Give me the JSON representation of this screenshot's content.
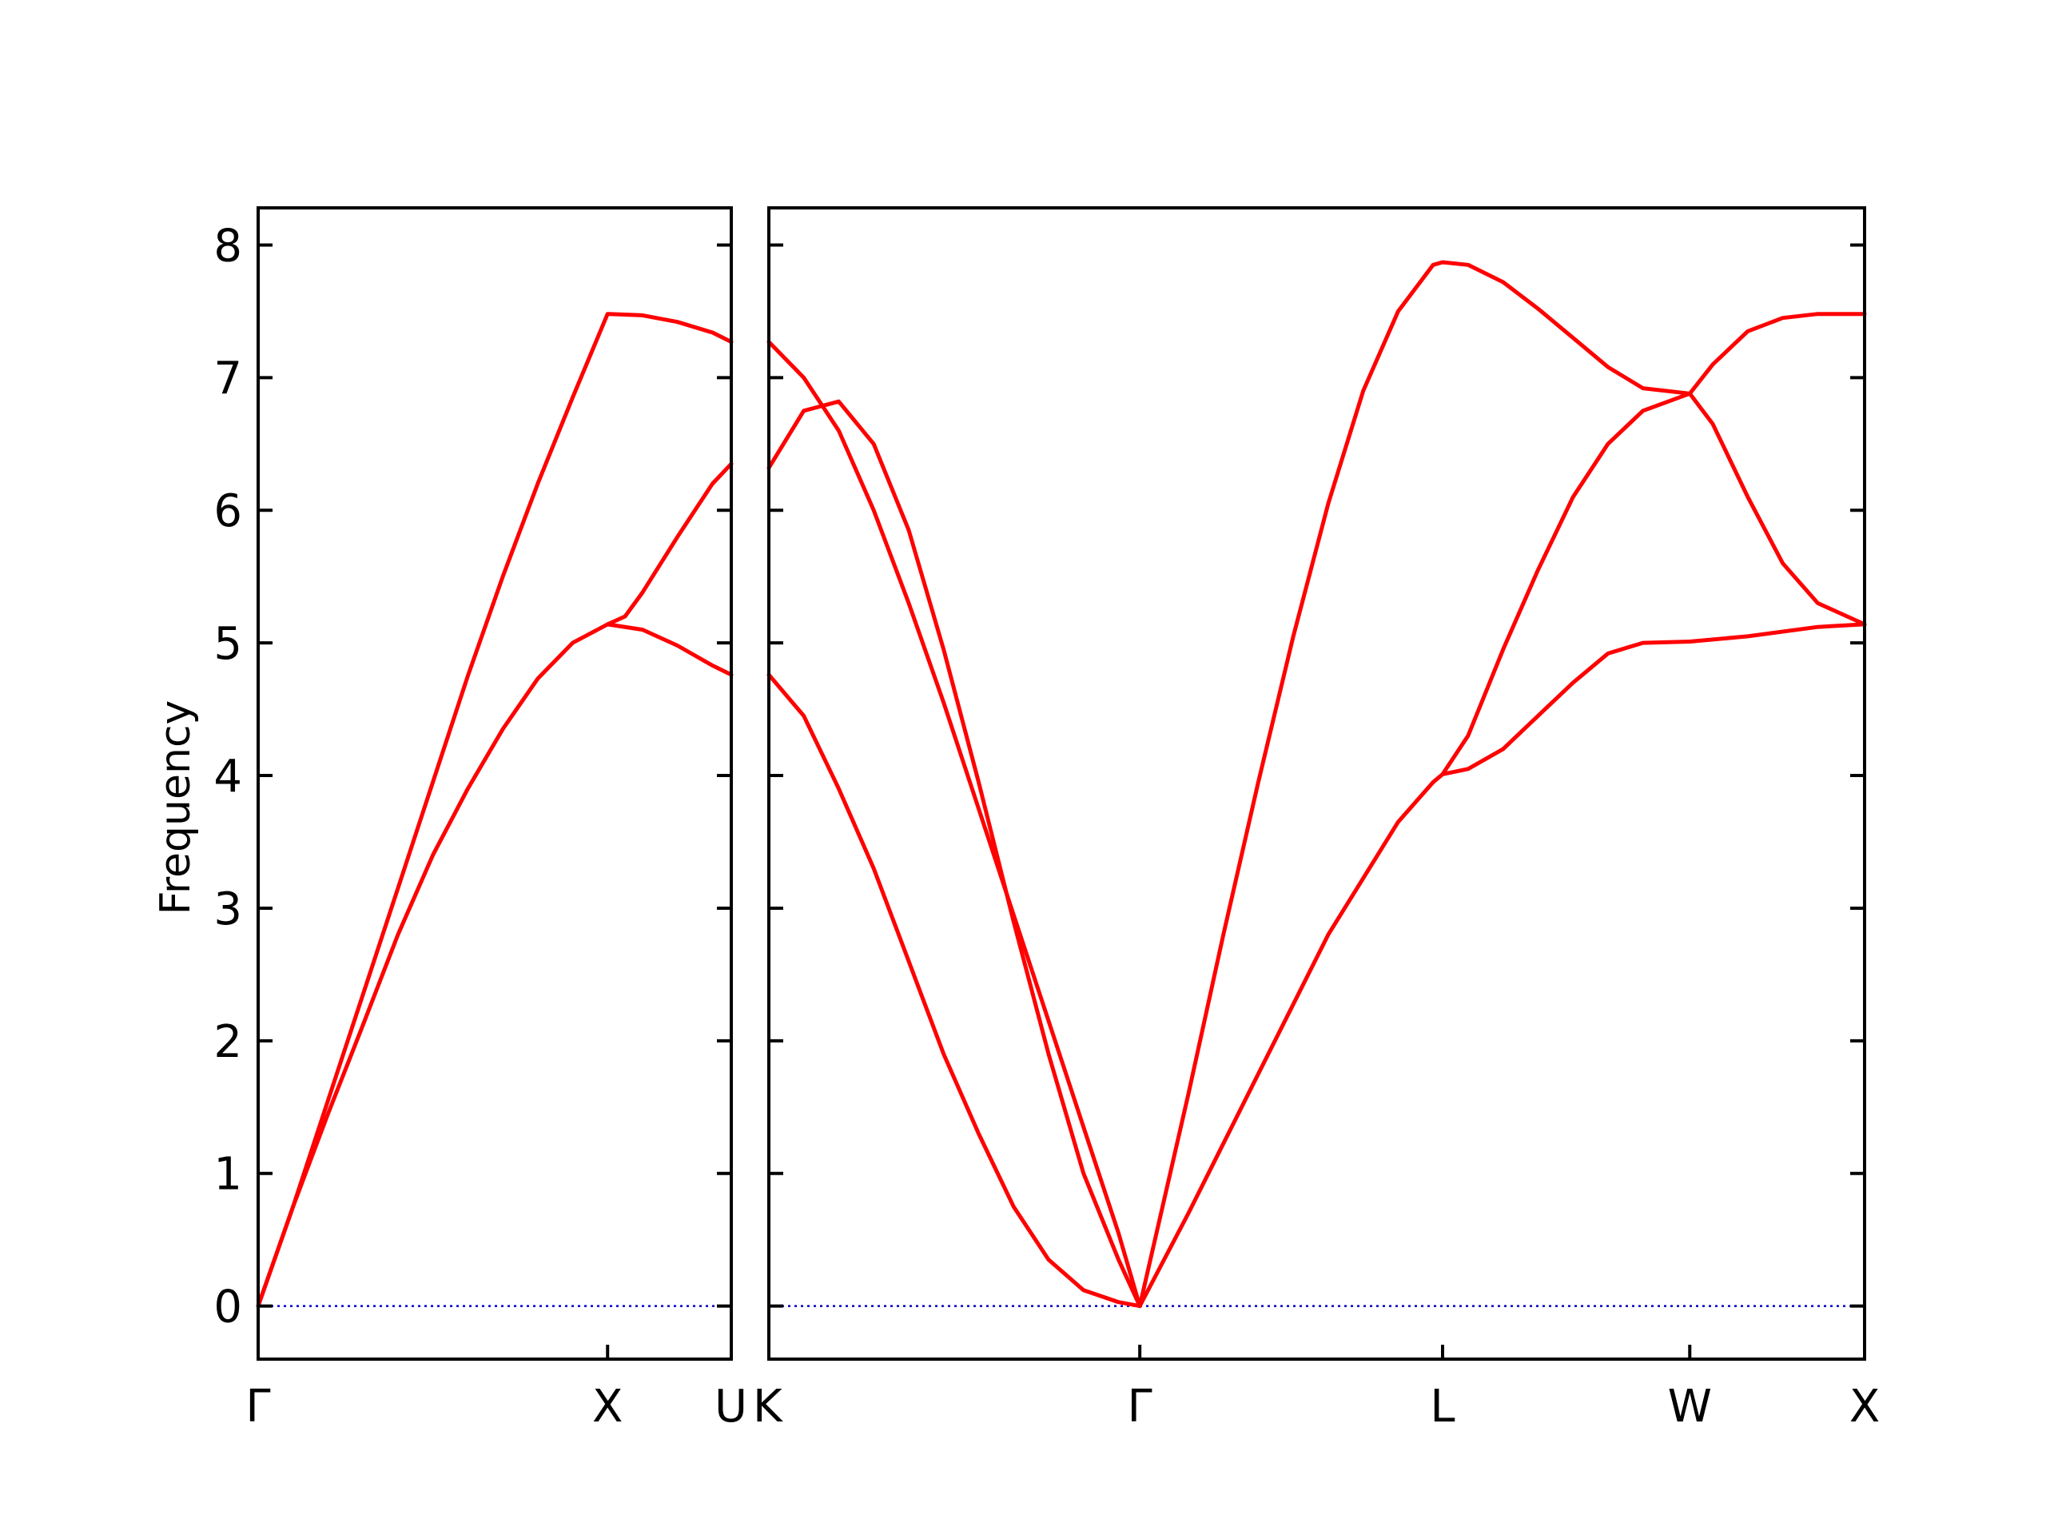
{
  "chart_data": {
    "type": "line",
    "ylabel": "Frequency",
    "ylim": [
      -0.4,
      8.28
    ],
    "yticks": [
      0,
      1,
      2,
      3,
      4,
      5,
      6,
      7,
      8
    ],
    "ytick_labels": [
      "0",
      "1",
      "2",
      "3",
      "4",
      "5",
      "6",
      "7",
      "8"
    ],
    "grid": false,
    "band_color": "#ff0000",
    "zero_line_color": "#0000cc",
    "panels": [
      {
        "xlim": [
          0,
          1.354
        ],
        "ticks": [
          {
            "x": 0,
            "label": "Γ"
          },
          {
            "x": 1.0,
            "label": "X"
          },
          {
            "x": 1.354,
            "label": "U"
          }
        ],
        "series": [
          {
            "values": [
              [
                0,
                0
              ],
              [
                0.1,
                0.75
              ],
              [
                0.2,
                1.55
              ],
              [
                0.3,
                2.35
              ],
              [
                0.4,
                3.15
              ],
              [
                0.5,
                3.95
              ],
              [
                0.6,
                4.75
              ],
              [
                0.7,
                5.5
              ],
              [
                0.8,
                6.2
              ],
              [
                0.9,
                6.85
              ],
              [
                1.0,
                7.48
              ],
              [
                1.1,
                7.47
              ],
              [
                1.2,
                7.42
              ],
              [
                1.3,
                7.34
              ],
              [
                1.354,
                7.27
              ]
            ]
          },
          {
            "values": [
              [
                0,
                0
              ],
              [
                0.1,
                0.75
              ],
              [
                0.2,
                1.45
              ],
              [
                0.3,
                2.12
              ],
              [
                0.4,
                2.8
              ],
              [
                0.5,
                3.4
              ],
              [
                0.6,
                3.9
              ],
              [
                0.7,
                4.35
              ],
              [
                0.8,
                4.73
              ],
              [
                0.9,
                5.0
              ],
              [
                1.0,
                5.14
              ],
              [
                1.05,
                5.2
              ],
              [
                1.1,
                5.38
              ],
              [
                1.2,
                5.8
              ],
              [
                1.3,
                6.2
              ],
              [
                1.354,
                6.35
              ]
            ]
          },
          {
            "values": [
              [
                1.0,
                5.14
              ],
              [
                1.1,
                5.1
              ],
              [
                1.2,
                4.98
              ],
              [
                1.3,
                4.83
              ],
              [
                1.354,
                4.76
              ]
            ]
          }
        ]
      },
      {
        "xlim": [
          0,
          3.134
        ],
        "ticks": [
          {
            "x": 0,
            "label": "K"
          },
          {
            "x": 1.061,
            "label": "Γ"
          },
          {
            "x": 1.927,
            "label": "L"
          },
          {
            "x": 2.634,
            "label": "W"
          },
          {
            "x": 3.134,
            "label": "X"
          }
        ],
        "series": [
          {
            "values": [
              [
                0,
                7.27
              ],
              [
                0.1,
                7.0
              ],
              [
                0.2,
                6.6
              ],
              [
                0.3,
                6.0
              ],
              [
                0.4,
                5.3
              ],
              [
                0.5,
                4.55
              ],
              [
                0.6,
                3.75
              ],
              [
                0.7,
                2.95
              ],
              [
                0.8,
                2.15
              ],
              [
                0.9,
                1.35
              ],
              [
                1.0,
                0.55
              ],
              [
                1.061,
                0
              ]
            ]
          },
          {
            "values": [
              [
                0,
                6.32
              ],
              [
                0.1,
                6.75
              ],
              [
                0.2,
                6.82
              ],
              [
                0.3,
                6.5
              ],
              [
                0.4,
                5.85
              ],
              [
                0.5,
                4.95
              ],
              [
                0.6,
                3.95
              ],
              [
                0.7,
                2.9
              ],
              [
                0.8,
                1.9
              ],
              [
                0.9,
                1.0
              ],
              [
                1.0,
                0.35
              ],
              [
                1.061,
                0
              ]
            ]
          },
          {
            "values": [
              [
                0,
                4.76
              ],
              [
                0.1,
                4.45
              ],
              [
                0.2,
                3.9
              ],
              [
                0.3,
                3.3
              ],
              [
                0.4,
                2.6
              ],
              [
                0.5,
                1.9
              ],
              [
                0.6,
                1.3
              ],
              [
                0.7,
                0.75
              ],
              [
                0.8,
                0.35
              ],
              [
                0.9,
                0.12
              ],
              [
                1.0,
                0.03
              ],
              [
                1.061,
                0
              ]
            ]
          },
          {
            "values": [
              [
                1.061,
                0
              ],
              [
                1.1,
                0.45
              ],
              [
                1.2,
                1.6
              ],
              [
                1.3,
                2.8
              ],
              [
                1.4,
                3.95
              ],
              [
                1.5,
                5.05
              ],
              [
                1.6,
                6.05
              ],
              [
                1.7,
                6.9
              ],
              [
                1.8,
                7.5
              ],
              [
                1.9,
                7.85
              ],
              [
                1.927,
                7.87
              ],
              [
                2.0,
                7.85
              ],
              [
                2.1,
                7.72
              ],
              [
                2.2,
                7.52
              ],
              [
                2.3,
                7.3
              ],
              [
                2.4,
                7.08
              ],
              [
                2.5,
                6.92
              ],
              [
                2.634,
                6.88
              ],
              [
                2.7,
                7.1
              ],
              [
                2.8,
                7.35
              ],
              [
                2.9,
                7.45
              ],
              [
                3.0,
                7.48
              ],
              [
                3.134,
                7.48
              ]
            ]
          },
          {
            "values": [
              [
                1.061,
                0
              ],
              [
                1.2,
                0.7
              ],
              [
                1.4,
                1.75
              ],
              [
                1.6,
                2.8
              ],
              [
                1.8,
                3.65
              ],
              [
                1.9,
                3.95
              ],
              [
                1.927,
                4.01
              ],
              [
                2.0,
                4.05
              ],
              [
                2.1,
                4.2
              ],
              [
                2.2,
                4.45
              ],
              [
                2.3,
                4.7
              ],
              [
                2.4,
                4.92
              ],
              [
                2.5,
                5.0
              ],
              [
                2.634,
                5.01
              ],
              [
                2.8,
                5.05
              ],
              [
                3.0,
                5.12
              ],
              [
                3.134,
                5.14
              ]
            ]
          },
          {
            "values": [
              [
                1.927,
                4.01
              ],
              [
                2.0,
                4.3
              ],
              [
                2.1,
                4.95
              ],
              [
                2.2,
                5.55
              ],
              [
                2.3,
                6.1
              ],
              [
                2.4,
                6.5
              ],
              [
                2.5,
                6.75
              ],
              [
                2.634,
                6.88
              ],
              [
                2.7,
                6.65
              ],
              [
                2.8,
                6.1
              ],
              [
                2.9,
                5.6
              ],
              [
                3.0,
                5.3
              ],
              [
                3.134,
                5.14
              ]
            ]
          }
        ]
      }
    ]
  }
}
